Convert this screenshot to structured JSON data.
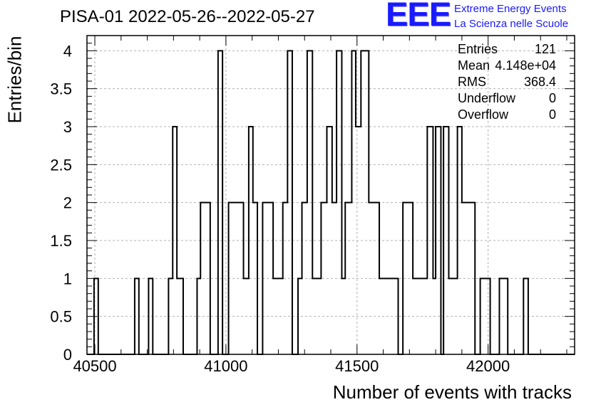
{
  "title": "PISA-01 2022-05-26--2022-05-27",
  "logo": {
    "letters": "EEE",
    "line1": "Extreme Energy Events",
    "line2": "La Scienza nelle Scuole",
    "color": "#1a1aff"
  },
  "stats": [
    {
      "name": "Entries",
      "value": "121"
    },
    {
      "name": "Mean",
      "value": "4.148e+04"
    },
    {
      "name": "RMS",
      "value": "368.4"
    },
    {
      "name": "Underflow",
      "value": "0"
    },
    {
      "name": "Overflow",
      "value": "0"
    }
  ],
  "chart_data": {
    "type": "histogram",
    "xlabel": "Number of events with tracks",
    "ylabel": "Entries/bin",
    "xlim": [
      40470,
      42330
    ],
    "ylim": [
      0,
      4.2
    ],
    "xticks": [
      40500,
      41000,
      41500,
      42000
    ],
    "yticks": [
      0,
      0.5,
      1,
      1.5,
      2,
      2.5,
      3,
      3.5,
      4
    ],
    "ytick_labels": [
      "0",
      "0.5",
      "1",
      "1.5",
      "2",
      "2.5",
      "3",
      "3.5",
      "4"
    ],
    "grid": true,
    "line_color": "#000000",
    "steps": [
      [
        40470,
        0
      ],
      [
        40497,
        1
      ],
      [
        40513,
        0
      ],
      [
        40652,
        1
      ],
      [
        40668,
        0
      ],
      [
        40705,
        1
      ],
      [
        40721,
        0
      ],
      [
        40781,
        1
      ],
      [
        40797,
        3
      ],
      [
        40813,
        1
      ],
      [
        40837,
        0
      ],
      [
        40890,
        1
      ],
      [
        40903,
        2
      ],
      [
        40940,
        0
      ],
      [
        40970,
        4
      ],
      [
        40987,
        0
      ],
      [
        41010,
        2
      ],
      [
        41067,
        1
      ],
      [
        41087,
        3
      ],
      [
        41103,
        2
      ],
      [
        41120,
        0
      ],
      [
        41140,
        2
      ],
      [
        41180,
        1
      ],
      [
        41217,
        2
      ],
      [
        41235,
        4
      ],
      [
        41253,
        0
      ],
      [
        41275,
        1
      ],
      [
        41290,
        2
      ],
      [
        41310,
        4
      ],
      [
        41330,
        1
      ],
      [
        41363,
        2
      ],
      [
        41385,
        3
      ],
      [
        41405,
        2
      ],
      [
        41422,
        4
      ],
      [
        41442,
        1
      ],
      [
        41455,
        2
      ],
      [
        41480,
        4
      ],
      [
        41495,
        3
      ],
      [
        41515,
        4
      ],
      [
        41545,
        2
      ],
      [
        41585,
        1
      ],
      [
        41657,
        0
      ],
      [
        41675,
        2
      ],
      [
        41713,
        1
      ],
      [
        41768,
        3
      ],
      [
        41790,
        1
      ],
      [
        41800,
        3
      ],
      [
        41820,
        0
      ],
      [
        41830,
        3
      ],
      [
        41850,
        1
      ],
      [
        41883,
        3
      ],
      [
        41900,
        2
      ],
      [
        41950,
        0
      ],
      [
        41970,
        1
      ],
      [
        42008,
        0
      ],
      [
        42043,
        1
      ],
      [
        42075,
        0
      ],
      [
        42135,
        1
      ],
      [
        42153,
        0
      ],
      [
        42330,
        0
      ]
    ]
  }
}
